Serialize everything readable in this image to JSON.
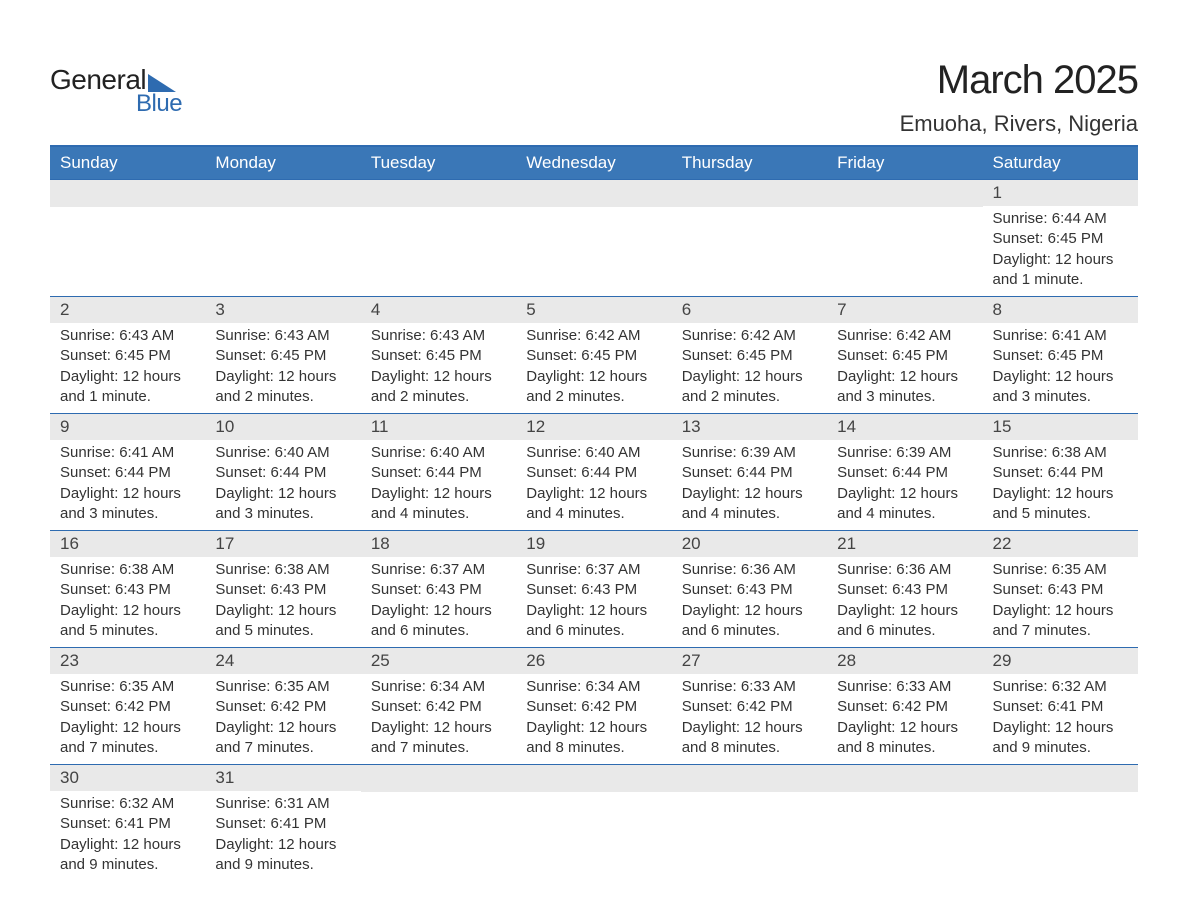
{
  "brand": {
    "word1": "General",
    "word2": "Blue",
    "text_color": "#222222",
    "accent_color": "#2e6bb0"
  },
  "title": {
    "month_year": "March 2025",
    "location": "Emuoha, Rivers, Nigeria",
    "title_fontsize": 40,
    "location_fontsize": 22
  },
  "calendar": {
    "type": "table",
    "header_bg": "#3a77b7",
    "header_text_color": "#ffffff",
    "band_bg": "#e9e9e9",
    "row_border_color": "#2e6bb0",
    "body_text_color": "#333333",
    "weekdays": [
      "Sunday",
      "Monday",
      "Tuesday",
      "Wednesday",
      "Thursday",
      "Friday",
      "Saturday"
    ],
    "weeks": [
      [
        null,
        null,
        null,
        null,
        null,
        null,
        {
          "n": "1",
          "sunrise": "6:44 AM",
          "sunset": "6:45 PM",
          "daylight": "12 hours and 1 minute."
        }
      ],
      [
        {
          "n": "2",
          "sunrise": "6:43 AM",
          "sunset": "6:45 PM",
          "daylight": "12 hours and 1 minute."
        },
        {
          "n": "3",
          "sunrise": "6:43 AM",
          "sunset": "6:45 PM",
          "daylight": "12 hours and 2 minutes."
        },
        {
          "n": "4",
          "sunrise": "6:43 AM",
          "sunset": "6:45 PM",
          "daylight": "12 hours and 2 minutes."
        },
        {
          "n": "5",
          "sunrise": "6:42 AM",
          "sunset": "6:45 PM",
          "daylight": "12 hours and 2 minutes."
        },
        {
          "n": "6",
          "sunrise": "6:42 AM",
          "sunset": "6:45 PM",
          "daylight": "12 hours and 2 minutes."
        },
        {
          "n": "7",
          "sunrise": "6:42 AM",
          "sunset": "6:45 PM",
          "daylight": "12 hours and 3 minutes."
        },
        {
          "n": "8",
          "sunrise": "6:41 AM",
          "sunset": "6:45 PM",
          "daylight": "12 hours and 3 minutes."
        }
      ],
      [
        {
          "n": "9",
          "sunrise": "6:41 AM",
          "sunset": "6:44 PM",
          "daylight": "12 hours and 3 minutes."
        },
        {
          "n": "10",
          "sunrise": "6:40 AM",
          "sunset": "6:44 PM",
          "daylight": "12 hours and 3 minutes."
        },
        {
          "n": "11",
          "sunrise": "6:40 AM",
          "sunset": "6:44 PM",
          "daylight": "12 hours and 4 minutes."
        },
        {
          "n": "12",
          "sunrise": "6:40 AM",
          "sunset": "6:44 PM",
          "daylight": "12 hours and 4 minutes."
        },
        {
          "n": "13",
          "sunrise": "6:39 AM",
          "sunset": "6:44 PM",
          "daylight": "12 hours and 4 minutes."
        },
        {
          "n": "14",
          "sunrise": "6:39 AM",
          "sunset": "6:44 PM",
          "daylight": "12 hours and 4 minutes."
        },
        {
          "n": "15",
          "sunrise": "6:38 AM",
          "sunset": "6:44 PM",
          "daylight": "12 hours and 5 minutes."
        }
      ],
      [
        {
          "n": "16",
          "sunrise": "6:38 AM",
          "sunset": "6:43 PM",
          "daylight": "12 hours and 5 minutes."
        },
        {
          "n": "17",
          "sunrise": "6:38 AM",
          "sunset": "6:43 PM",
          "daylight": "12 hours and 5 minutes."
        },
        {
          "n": "18",
          "sunrise": "6:37 AM",
          "sunset": "6:43 PM",
          "daylight": "12 hours and 6 minutes."
        },
        {
          "n": "19",
          "sunrise": "6:37 AM",
          "sunset": "6:43 PM",
          "daylight": "12 hours and 6 minutes."
        },
        {
          "n": "20",
          "sunrise": "6:36 AM",
          "sunset": "6:43 PM",
          "daylight": "12 hours and 6 minutes."
        },
        {
          "n": "21",
          "sunrise": "6:36 AM",
          "sunset": "6:43 PM",
          "daylight": "12 hours and 6 minutes."
        },
        {
          "n": "22",
          "sunrise": "6:35 AM",
          "sunset": "6:43 PM",
          "daylight": "12 hours and 7 minutes."
        }
      ],
      [
        {
          "n": "23",
          "sunrise": "6:35 AM",
          "sunset": "6:42 PM",
          "daylight": "12 hours and 7 minutes."
        },
        {
          "n": "24",
          "sunrise": "6:35 AM",
          "sunset": "6:42 PM",
          "daylight": "12 hours and 7 minutes."
        },
        {
          "n": "25",
          "sunrise": "6:34 AM",
          "sunset": "6:42 PM",
          "daylight": "12 hours and 7 minutes."
        },
        {
          "n": "26",
          "sunrise": "6:34 AM",
          "sunset": "6:42 PM",
          "daylight": "12 hours and 8 minutes."
        },
        {
          "n": "27",
          "sunrise": "6:33 AM",
          "sunset": "6:42 PM",
          "daylight": "12 hours and 8 minutes."
        },
        {
          "n": "28",
          "sunrise": "6:33 AM",
          "sunset": "6:42 PM",
          "daylight": "12 hours and 8 minutes."
        },
        {
          "n": "29",
          "sunrise": "6:32 AM",
          "sunset": "6:41 PM",
          "daylight": "12 hours and 9 minutes."
        }
      ],
      [
        {
          "n": "30",
          "sunrise": "6:32 AM",
          "sunset": "6:41 PM",
          "daylight": "12 hours and 9 minutes."
        },
        {
          "n": "31",
          "sunrise": "6:31 AM",
          "sunset": "6:41 PM",
          "daylight": "12 hours and 9 minutes."
        },
        null,
        null,
        null,
        null,
        null
      ]
    ],
    "labels": {
      "sunrise_prefix": "Sunrise: ",
      "sunset_prefix": "Sunset: ",
      "daylight_prefix": "Daylight: "
    }
  }
}
